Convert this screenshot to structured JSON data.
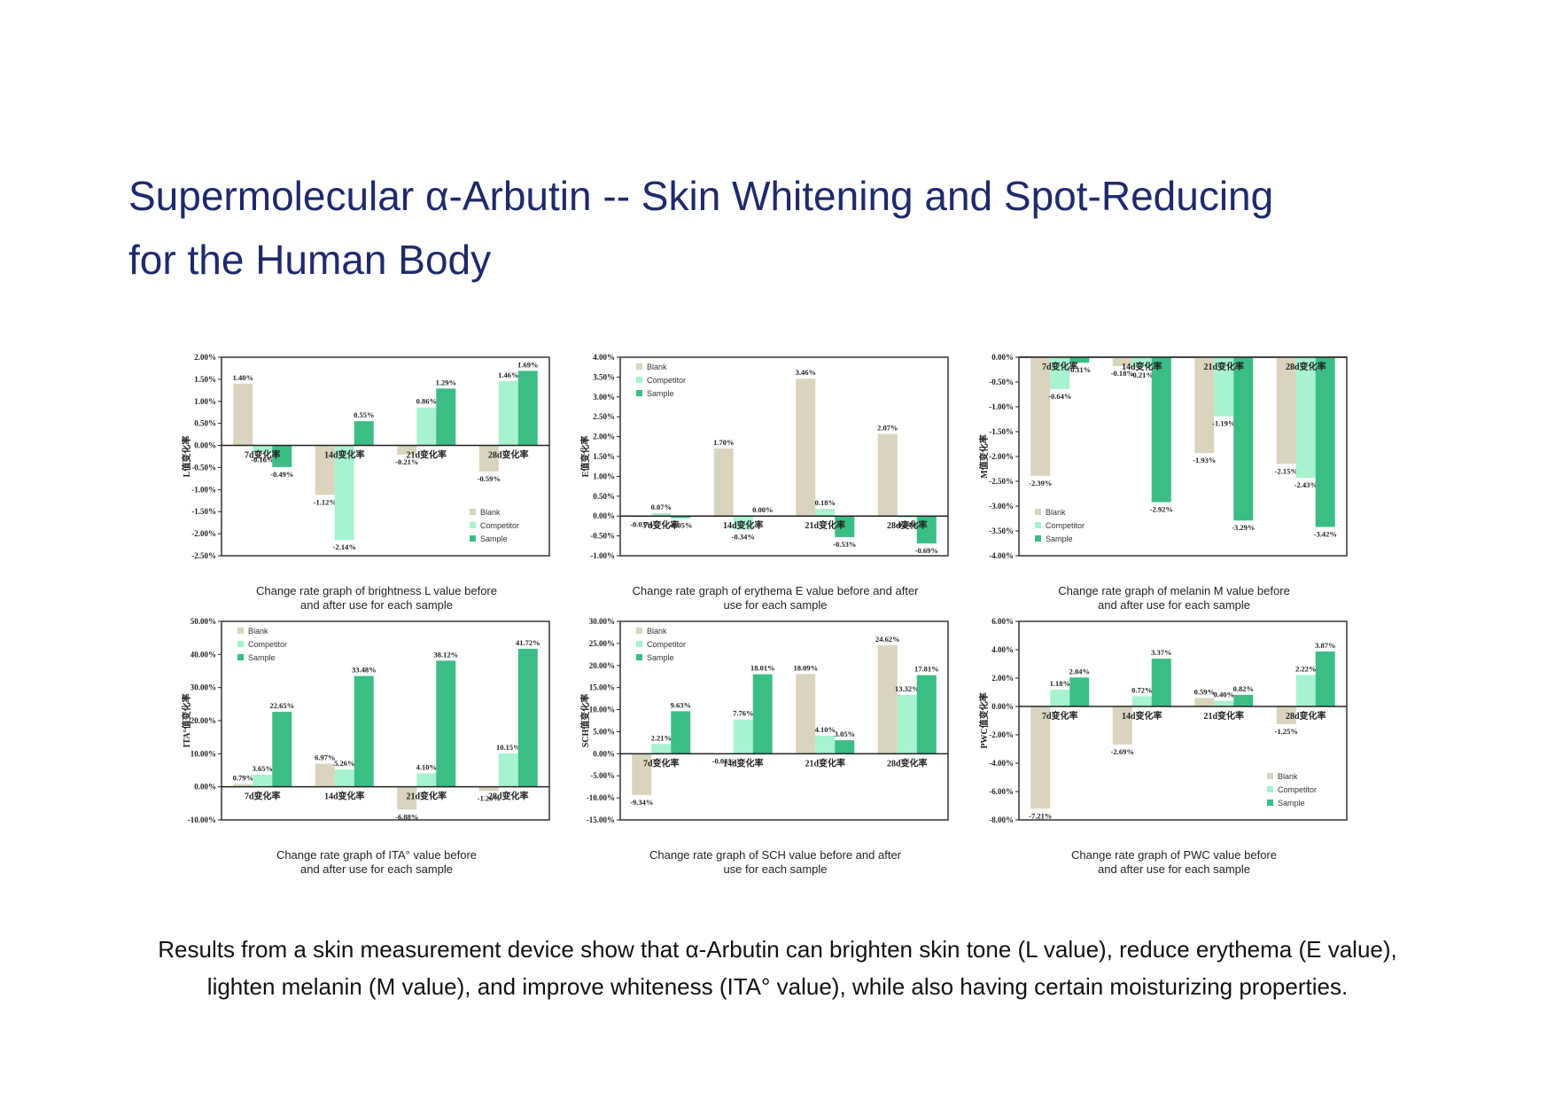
{
  "page": {
    "title_line1": "Supermolecular α-Arbutin -- Skin Whitening and Spot-Reducing",
    "title_line2": "for the Human Body",
    "footer_line1": "Results from a skin measurement device show that α-Arbutin can brighten skin tone (L value), reduce erythema (E value),",
    "footer_line2": "lighten melanin (M value), and improve whiteness (ITA° value), while also having certain moisturizing properties."
  },
  "colors": {
    "blank": "#d9d4bd",
    "competitor": "#a7f2cf",
    "sample": "#3bbd86",
    "axis": "#222222",
    "frame": "#333333"
  },
  "chart_data": [
    {
      "type": "bar",
      "caption_line1": "Change rate graph of brightness L value before",
      "caption_line2": "and after use for each sample",
      "ylabel": "L值变化率",
      "categories": [
        "7d变化率",
        "14d变化率",
        "21d变化率",
        "28d变化率"
      ],
      "ylim": [
        -2.5,
        2.0
      ],
      "yticks": [
        2.0,
        1.5,
        1.0,
        0.5,
        0.0,
        -0.5,
        -1.0,
        -1.5,
        -2.0,
        -2.5
      ],
      "ytick_labels": [
        "2.00%",
        "1.50%",
        "1.00%",
        "0.50%",
        "0.00%",
        "-0.50%",
        "-1.00%",
        "-1.50%",
        "-2.00%",
        "-2.50%"
      ],
      "legend": [
        "Blank",
        "Competitor",
        "Sample"
      ],
      "legend_position": "bottom-right",
      "series": [
        {
          "name": "Blank",
          "values": [
            1.4,
            -1.12,
            -0.21,
            -0.59
          ],
          "labels": [
            "1.40%",
            "-1.12%",
            "-0.21%",
            "-0.59%"
          ]
        },
        {
          "name": "Competitor",
          "values": [
            -0.16,
            -2.14,
            0.86,
            1.46
          ],
          "labels": [
            "-0.16%",
            "-2.14%",
            "0.86%",
            "1.46%"
          ]
        },
        {
          "name": "Sample",
          "values": [
            -0.49,
            0.55,
            1.29,
            1.69
          ],
          "labels": [
            "-0.49%",
            "0.55%",
            "1.29%",
            "1.69%"
          ]
        }
      ]
    },
    {
      "type": "bar",
      "caption_line1": "Change rate graph of erythema E value before and after",
      "caption_line2": "use for each sample",
      "ylabel": "E值变化率",
      "categories": [
        "7d变化率",
        "14d变化率",
        "21d变化率",
        "28d变化率"
      ],
      "ylim": [
        -1.0,
        4.0
      ],
      "yticks": [
        4.0,
        3.5,
        3.0,
        2.5,
        2.0,
        1.5,
        1.0,
        0.5,
        0.0,
        -0.5,
        -1.0
      ],
      "ytick_labels": [
        "4.00%",
        "3.50%",
        "3.00%",
        "2.50%",
        "2.00%",
        "1.50%",
        "1.00%",
        "0.50%",
        "0.00%",
        "-0.50%",
        "-1.00%"
      ],
      "legend": [
        "Blank",
        "Competitor",
        "Sample"
      ],
      "legend_position": "top-left",
      "series": [
        {
          "name": "Blank",
          "values": [
            -0.03,
            1.7,
            3.46,
            2.07
          ],
          "labels": [
            "-0.03%",
            "1.70%",
            "3.46%",
            "2.07%"
          ]
        },
        {
          "name": "Competitor",
          "values": [
            0.07,
            -0.34,
            0.18,
            -0.04
          ],
          "labels": [
            "0.07%",
            "-0.34%",
            "0.18%",
            "-0.04%"
          ]
        },
        {
          "name": "Sample",
          "values": [
            -0.05,
            0.0,
            -0.53,
            -0.69
          ],
          "labels": [
            "-0.05%",
            "0.00%",
            "-0.53%",
            "-0.69%"
          ]
        }
      ]
    },
    {
      "type": "bar",
      "caption_line1": "Change rate graph of melanin M value before",
      "caption_line2": "and after use for each sample",
      "ylabel": "M值变化率",
      "categories": [
        "7d变化率",
        "14d变化率",
        "21d变化率",
        "28d变化率"
      ],
      "ylim": [
        -4.0,
        0.0
      ],
      "yticks": [
        0.0,
        -0.5,
        -1.0,
        -1.5,
        -2.0,
        -2.5,
        -3.0,
        -3.5,
        -4.0
      ],
      "ytick_labels": [
        "0.00%",
        "-0.50%",
        "-1.00%",
        "-1.50%",
        "-2.00%",
        "-2.50%",
        "-3.00%",
        "-3.50%",
        "-4.00%"
      ],
      "legend": [
        "Blank",
        "Competitor",
        "Sample"
      ],
      "legend_position": "bottom-left",
      "series": [
        {
          "name": "Blank",
          "values": [
            -2.39,
            -0.18,
            -1.93,
            -2.15
          ],
          "labels": [
            "-2.39%",
            "-0.18%",
            "-1.93%",
            "-2.15%"
          ]
        },
        {
          "name": "Competitor",
          "values": [
            -0.64,
            -0.21,
            -1.19,
            -2.43
          ],
          "labels": [
            "-0.64%",
            "-0.21%",
            "-1.19%",
            "-2.43%"
          ]
        },
        {
          "name": "Sample",
          "values": [
            -0.11,
            -2.92,
            -3.29,
            -3.42
          ],
          "labels": [
            "-0.11%",
            "-2.92%",
            "-3.29%",
            "-3.42%"
          ]
        }
      ]
    },
    {
      "type": "bar",
      "caption_line1": "Change rate graph of ITA° value before",
      "caption_line2": "and after use for each sample",
      "ylabel": "ITA°值变化率",
      "categories": [
        "7d变化率",
        "14d变化率",
        "21d变化率",
        "28d变化率"
      ],
      "ylim": [
        -10.0,
        50.0
      ],
      "yticks": [
        50,
        40,
        30,
        20,
        10,
        0,
        -10
      ],
      "ytick_labels": [
        "50.00%",
        "40.00%",
        "30.00%",
        "20.00%",
        "10.00%",
        "0.00%",
        "-10.00%"
      ],
      "legend": [
        "Blank",
        "Competitor",
        "Sample"
      ],
      "legend_position": "top-left",
      "series": [
        {
          "name": "Blank",
          "values": [
            0.79,
            6.97,
            -6.88,
            -1.26
          ],
          "labels": [
            "0.79%",
            "6.97%",
            "-6.88%",
            "-1.26%"
          ]
        },
        {
          "name": "Competitor",
          "values": [
            3.65,
            5.26,
            4.1,
            10.15
          ],
          "labels": [
            "3.65%",
            "5.26%",
            "4.10%",
            "10.15%"
          ]
        },
        {
          "name": "Sample",
          "values": [
            22.65,
            33.48,
            38.12,
            41.72
          ],
          "labels": [
            "22.65%",
            "33.48%",
            "38.12%",
            "41.72%"
          ]
        }
      ]
    },
    {
      "type": "bar",
      "caption_line1": "Change rate graph of SCH value before and after",
      "caption_line2": "use for each sample",
      "ylabel": "SCH值变化率",
      "categories": [
        "7d变化率",
        "14d变化率",
        "21d变化率",
        "28d变化率"
      ],
      "ylim": [
        -15.0,
        30.0
      ],
      "yticks": [
        30,
        25,
        20,
        15,
        10,
        5,
        0,
        -5,
        -10,
        -15
      ],
      "ytick_labels": [
        "30.00%",
        "25.00%",
        "20.00%",
        "15.00%",
        "10.00%",
        "5.00%",
        "0.00%",
        "-5.00%",
        "-10.00%",
        "-15.00%"
      ],
      "legend": [
        "Blank",
        "Competitor",
        "Sample"
      ],
      "legend_position": "top-left",
      "series": [
        {
          "name": "Blank",
          "values": [
            -9.34,
            -0.03,
            18.09,
            24.62
          ],
          "labels": [
            "-9.34%",
            "-0.03%",
            "18.09%",
            "24.62%"
          ]
        },
        {
          "name": "Competitor",
          "values": [
            2.21,
            7.76,
            4.1,
            13.32
          ],
          "labels": [
            "2.21%",
            "7.76%",
            "4.10%",
            "13.32%"
          ]
        },
        {
          "name": "Sample",
          "values": [
            9.63,
            18.01,
            3.05,
            17.81
          ],
          "labels": [
            "9.63%",
            "18.01%",
            "3.05%",
            "17.81%"
          ]
        }
      ]
    },
    {
      "type": "bar",
      "caption_line1": "Change rate graph of PWC value before",
      "caption_line2": "and after use for each sample",
      "ylabel": "PWC值变化率",
      "categories": [
        "7d变化率",
        "14d变化率",
        "21d变化率",
        "28d变化率"
      ],
      "ylim": [
        -8.0,
        6.0
      ],
      "yticks": [
        6,
        4,
        2,
        0,
        -2,
        -4,
        -6,
        -8
      ],
      "ytick_labels": [
        "6.00%",
        "4.00%",
        "2.00%",
        "0.00%",
        "-2.00%",
        "-4.00%",
        "-6.00%",
        "-8.00%"
      ],
      "legend": [
        "Blank",
        "Competitor",
        "Sample"
      ],
      "legend_position": "bottom-right",
      "series": [
        {
          "name": "Blank",
          "values": [
            -7.21,
            -2.69,
            0.59,
            -1.25
          ],
          "labels": [
            "-7.21%",
            "-2.69%",
            "0.59%",
            "-1.25%"
          ]
        },
        {
          "name": "Competitor",
          "values": [
            1.18,
            0.72,
            0.4,
            2.22
          ],
          "labels": [
            "1.18%",
            "0.72%",
            "0.40%",
            "2.22%"
          ]
        },
        {
          "name": "Sample",
          "values": [
            2.04,
            3.37,
            0.82,
            3.87
          ],
          "labels": [
            "2.04%",
            "3.37%",
            "0.82%",
            "3.87%"
          ]
        }
      ]
    }
  ]
}
